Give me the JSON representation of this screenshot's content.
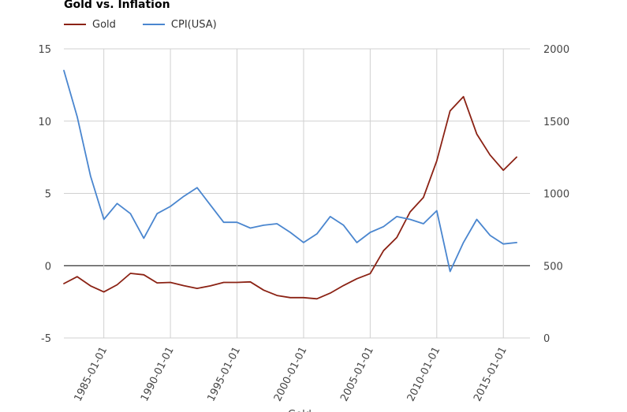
{
  "chart_data": {
    "type": "line",
    "title": "Gold vs. Inflation",
    "xlabel": "Gold",
    "x_start": 1982,
    "x_end": 2017,
    "x_ticks": [
      "1985-01-01",
      "1990-01-01",
      "1995-01-01",
      "2000-01-01",
      "2005-01-01",
      "2010-01-01",
      "2015-01-01"
    ],
    "x_tick_years": [
      1985,
      1990,
      1995,
      2000,
      2005,
      2010,
      2015
    ],
    "y_left": {
      "min": -5,
      "max": 15,
      "ticks": [
        15,
        10,
        5,
        0,
        -5
      ]
    },
    "y_right": {
      "min": 0,
      "max": 2000,
      "ticks": [
        2000,
        1500,
        1000,
        500,
        0
      ]
    },
    "grid": true,
    "legend_position": "top-left",
    "series": [
      {
        "name": "Gold",
        "axis": "right",
        "color": "#8b2214",
        "x": [
          1982,
          1983,
          1984,
          1985,
          1986,
          1987,
          1988,
          1989,
          1990,
          1991,
          1992,
          1993,
          1994,
          1995,
          1996,
          1997,
          1998,
          1999,
          2000,
          2001,
          2002,
          2003,
          2004,
          2005,
          2006,
          2007,
          2008,
          2009,
          2010,
          2011,
          2012,
          2013,
          2014,
          2015,
          2016
        ],
        "values": [
          376,
          424,
          360,
          318,
          368,
          447,
          437,
          381,
          384,
          362,
          343,
          360,
          384,
          384,
          388,
          331,
          294,
          279,
          279,
          271,
          310,
          363,
          410,
          445,
          604,
          695,
          872,
          972,
          1225,
          1571,
          1669,
          1411,
          1266,
          1160,
          1251
        ]
      },
      {
        "name": "CPI(USA)",
        "axis": "left",
        "color": "#4a86cf",
        "x": [
          1982,
          1983,
          1984,
          1985,
          1986,
          1987,
          1988,
          1989,
          1990,
          1991,
          1992,
          1993,
          1994,
          1995,
          1996,
          1997,
          1998,
          1999,
          2000,
          2001,
          2002,
          2003,
          2004,
          2005,
          2006,
          2007,
          2008,
          2009,
          2010,
          2011,
          2012,
          2013,
          2014,
          2015,
          2016
        ],
        "values": [
          13.5,
          10.3,
          6.2,
          3.2,
          4.3,
          3.6,
          1.9,
          3.6,
          4.1,
          4.8,
          5.4,
          4.2,
          3.0,
          3.0,
          2.6,
          2.8,
          2.9,
          2.3,
          1.6,
          2.2,
          3.4,
          2.8,
          1.6,
          2.3,
          2.7,
          3.4,
          3.2,
          2.9,
          3.8,
          -0.4,
          1.6,
          3.2,
          2.1,
          1.5,
          1.6
        ]
      }
    ]
  }
}
